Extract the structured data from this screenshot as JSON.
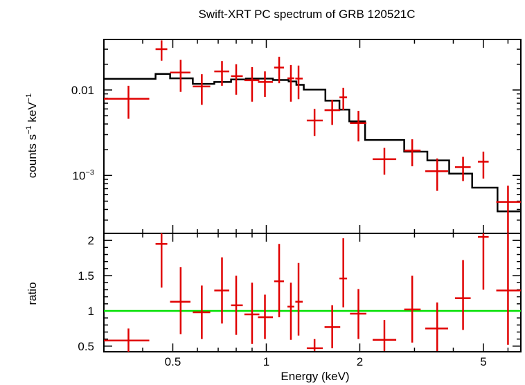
{
  "chart_data": {
    "type": "scatter",
    "title": "Swift-XRT PC spectrum of GRB 120521C",
    "xlabel": "Energy (keV)",
    "x_scale": "log",
    "xlim": [
      0.3,
      6.6
    ],
    "x_ticks": [
      {
        "value": 0.5,
        "label": "0.5"
      },
      {
        "value": 1,
        "label": "1"
      },
      {
        "value": 2,
        "label": "2"
      },
      {
        "value": 5,
        "label": "5"
      }
    ],
    "panels": [
      {
        "name": "spectrum",
        "ylabel_text": "counts s",
        "ylabel_sup1": "−1",
        "ylabel_mid": " keV",
        "ylabel_sup2": "−1",
        "y_scale": "log",
        "ylim": [
          0.00021,
          0.039
        ],
        "y_ticks": [
          {
            "value": 0.01,
            "label": "0.01",
            "sup": ""
          },
          {
            "value": 0.001,
            "label": "10",
            "sup": "−3"
          }
        ],
        "data_color": "#e00000",
        "model_color": "#000000",
        "data": [
          {
            "x": 0.36,
            "xlo": 0.3,
            "xhi": 0.42,
            "y": 0.0079,
            "ylo": 0.0046,
            "yhi": 0.0112
          },
          {
            "x": 0.46,
            "xlo": 0.44,
            "xhi": 0.48,
            "y": 0.03,
            "ylo": 0.022,
            "yhi": 0.038
          },
          {
            "x": 0.53,
            "xlo": 0.49,
            "xhi": 0.57,
            "y": 0.016,
            "ylo": 0.0095,
            "yhi": 0.0225
          },
          {
            "x": 0.62,
            "xlo": 0.58,
            "xhi": 0.66,
            "y": 0.011,
            "ylo": 0.0067,
            "yhi": 0.0153
          },
          {
            "x": 0.72,
            "xlo": 0.68,
            "xhi": 0.76,
            "y": 0.0165,
            "ylo": 0.0112,
            "yhi": 0.0218
          },
          {
            "x": 0.8,
            "xlo": 0.77,
            "xhi": 0.84,
            "y": 0.0145,
            "ylo": 0.0088,
            "yhi": 0.02
          },
          {
            "x": 0.9,
            "xlo": 0.85,
            "xhi": 0.95,
            "y": 0.013,
            "ylo": 0.0073,
            "yhi": 0.0185
          },
          {
            "x": 0.99,
            "xlo": 0.94,
            "xhi": 1.05,
            "y": 0.0124,
            "ylo": 0.0083,
            "yhi": 0.0165
          },
          {
            "x": 1.1,
            "xlo": 1.06,
            "xhi": 1.14,
            "y": 0.0183,
            "ylo": 0.012,
            "yhi": 0.0245
          },
          {
            "x": 1.2,
            "xlo": 1.17,
            "xhi": 1.23,
            "y": 0.0137,
            "ylo": 0.0073,
            "yhi": 0.0196
          },
          {
            "x": 1.27,
            "xlo": 1.24,
            "xhi": 1.31,
            "y": 0.0136,
            "ylo": 0.0078,
            "yhi": 0.0193
          },
          {
            "x": 1.43,
            "xlo": 1.35,
            "xhi": 1.52,
            "y": 0.0044,
            "ylo": 0.0029,
            "yhi": 0.006
          },
          {
            "x": 1.63,
            "xlo": 1.54,
            "xhi": 1.73,
            "y": 0.0058,
            "ylo": 0.0039,
            "yhi": 0.0077
          },
          {
            "x": 1.77,
            "xlo": 1.72,
            "xhi": 1.82,
            "y": 0.0082,
            "ylo": 0.0058,
            "yhi": 0.0106
          },
          {
            "x": 1.98,
            "xlo": 1.86,
            "xhi": 2.1,
            "y": 0.0041,
            "ylo": 0.0025,
            "yhi": 0.0057
          },
          {
            "x": 2.4,
            "xlo": 2.2,
            "xhi": 2.62,
            "y": 0.00155,
            "ylo": 0.00102,
            "yhi": 0.0021
          },
          {
            "x": 2.95,
            "xlo": 2.78,
            "xhi": 3.14,
            "y": 0.00195,
            "ylo": 0.00128,
            "yhi": 0.00265
          },
          {
            "x": 3.55,
            "xlo": 3.25,
            "xhi": 3.85,
            "y": 0.00112,
            "ylo": 0.00066,
            "yhi": 0.00158
          },
          {
            "x": 4.3,
            "xlo": 4.05,
            "xhi": 4.55,
            "y": 0.00125,
            "ylo": 0.00086,
            "yhi": 0.00165
          },
          {
            "x": 5.0,
            "xlo": 4.8,
            "xhi": 5.2,
            "y": 0.00145,
            "ylo": 0.00092,
            "yhi": 0.0019
          },
          {
            "x": 6.0,
            "xlo": 5.5,
            "xhi": 6.6,
            "y": 0.00049,
            "ylo": 0.00021,
            "yhi": 0.00076
          }
        ],
        "model": [
          [
            0.3,
            0.0135
          ],
          [
            0.44,
            0.0135
          ],
          [
            0.44,
            0.0154
          ],
          [
            0.49,
            0.0154
          ],
          [
            0.49,
            0.0137
          ],
          [
            0.58,
            0.0137
          ],
          [
            0.58,
            0.0118
          ],
          [
            0.68,
            0.0118
          ],
          [
            0.68,
            0.0124
          ],
          [
            0.77,
            0.0124
          ],
          [
            0.77,
            0.0133
          ],
          [
            0.86,
            0.0133
          ],
          [
            0.86,
            0.0136
          ],
          [
            1.05,
            0.0136
          ],
          [
            1.05,
            0.0131
          ],
          [
            1.18,
            0.0131
          ],
          [
            1.18,
            0.0126
          ],
          [
            1.25,
            0.0126
          ],
          [
            1.25,
            0.0115
          ],
          [
            1.32,
            0.0115
          ],
          [
            1.32,
            0.0101
          ],
          [
            1.55,
            0.0101
          ],
          [
            1.55,
            0.0075
          ],
          [
            1.72,
            0.0075
          ],
          [
            1.72,
            0.0059
          ],
          [
            1.85,
            0.0059
          ],
          [
            1.85,
            0.0043
          ],
          [
            2.08,
            0.0043
          ],
          [
            2.08,
            0.0026
          ],
          [
            2.78,
            0.0026
          ],
          [
            2.78,
            0.0019
          ],
          [
            3.3,
            0.0019
          ],
          [
            3.3,
            0.0015
          ],
          [
            3.88,
            0.0015
          ],
          [
            3.88,
            0.00105
          ],
          [
            4.6,
            0.00105
          ],
          [
            4.6,
            0.00072
          ],
          [
            5.55,
            0.00072
          ],
          [
            5.55,
            0.00038
          ],
          [
            6.6,
            0.00038
          ]
        ]
      },
      {
        "name": "ratio",
        "ylabel_text": "ratio",
        "y_scale": "linear",
        "ylim": [
          0.42,
          2.1
        ],
        "y_ticks": [
          {
            "value": 0.5,
            "label": "0.5"
          },
          {
            "value": 1,
            "label": "1"
          },
          {
            "value": 1.5,
            "label": "1.5"
          },
          {
            "value": 2,
            "label": "2"
          }
        ],
        "reference_line": {
          "y": 1,
          "color": "#00e000"
        },
        "data_color": "#e00000",
        "data": [
          {
            "x": 0.36,
            "xlo": 0.3,
            "xhi": 0.42,
            "y": 0.58,
            "ylo": 0.42,
            "yhi": 0.75
          },
          {
            "x": 0.46,
            "xlo": 0.44,
            "xhi": 0.48,
            "y": 1.95,
            "ylo": 1.33,
            "yhi": 2.1
          },
          {
            "x": 0.53,
            "xlo": 0.49,
            "xhi": 0.57,
            "y": 1.13,
            "ylo": 0.67,
            "yhi": 1.62
          },
          {
            "x": 0.62,
            "xlo": 0.58,
            "xhi": 0.66,
            "y": 0.98,
            "ylo": 0.6,
            "yhi": 1.36
          },
          {
            "x": 0.72,
            "xlo": 0.68,
            "xhi": 0.76,
            "y": 1.29,
            "ylo": 0.82,
            "yhi": 1.76
          },
          {
            "x": 0.8,
            "xlo": 0.77,
            "xhi": 0.84,
            "y": 1.08,
            "ylo": 0.66,
            "yhi": 1.5
          },
          {
            "x": 0.9,
            "xlo": 0.85,
            "xhi": 0.95,
            "y": 0.95,
            "ylo": 0.53,
            "yhi": 1.4
          },
          {
            "x": 0.99,
            "xlo": 0.94,
            "xhi": 1.05,
            "y": 0.91,
            "ylo": 0.6,
            "yhi": 1.23
          },
          {
            "x": 1.1,
            "xlo": 1.06,
            "xhi": 1.14,
            "y": 1.42,
            "ylo": 0.91,
            "yhi": 1.95
          },
          {
            "x": 1.2,
            "xlo": 1.17,
            "xhi": 1.23,
            "y": 1.06,
            "ylo": 0.59,
            "yhi": 1.4
          },
          {
            "x": 1.27,
            "xlo": 1.24,
            "xhi": 1.31,
            "y": 1.13,
            "ylo": 0.65,
            "yhi": 1.68
          },
          {
            "x": 1.43,
            "xlo": 1.35,
            "xhi": 1.52,
            "y": 0.47,
            "ylo": 0.43,
            "yhi": 0.6
          },
          {
            "x": 1.63,
            "xlo": 1.54,
            "xhi": 1.73,
            "y": 0.77,
            "ylo": 0.47,
            "yhi": 1.08
          },
          {
            "x": 1.77,
            "xlo": 1.72,
            "xhi": 1.82,
            "y": 1.46,
            "ylo": 1.05,
            "yhi": 2.03
          },
          {
            "x": 1.98,
            "xlo": 1.86,
            "xhi": 2.1,
            "y": 0.96,
            "ylo": 0.6,
            "yhi": 1.31
          },
          {
            "x": 2.4,
            "xlo": 2.2,
            "xhi": 2.62,
            "y": 0.59,
            "ylo": 0.43,
            "yhi": 0.87
          },
          {
            "x": 2.95,
            "xlo": 2.78,
            "xhi": 3.14,
            "y": 1.02,
            "ylo": 0.55,
            "yhi": 1.5
          },
          {
            "x": 3.55,
            "xlo": 3.25,
            "xhi": 3.85,
            "y": 0.75,
            "ylo": 0.43,
            "yhi": 1.12
          },
          {
            "x": 4.3,
            "xlo": 4.05,
            "xhi": 4.55,
            "y": 1.18,
            "ylo": 0.73,
            "yhi": 1.72
          },
          {
            "x": 5.0,
            "xlo": 4.8,
            "xhi": 5.2,
            "y": 2.05,
            "ylo": 1.3,
            "yhi": 2.1
          },
          {
            "x": 6.0,
            "xlo": 5.5,
            "xhi": 6.6,
            "y": 1.29,
            "ylo": 0.52,
            "yhi": 2.1
          }
        ]
      }
    ]
  }
}
